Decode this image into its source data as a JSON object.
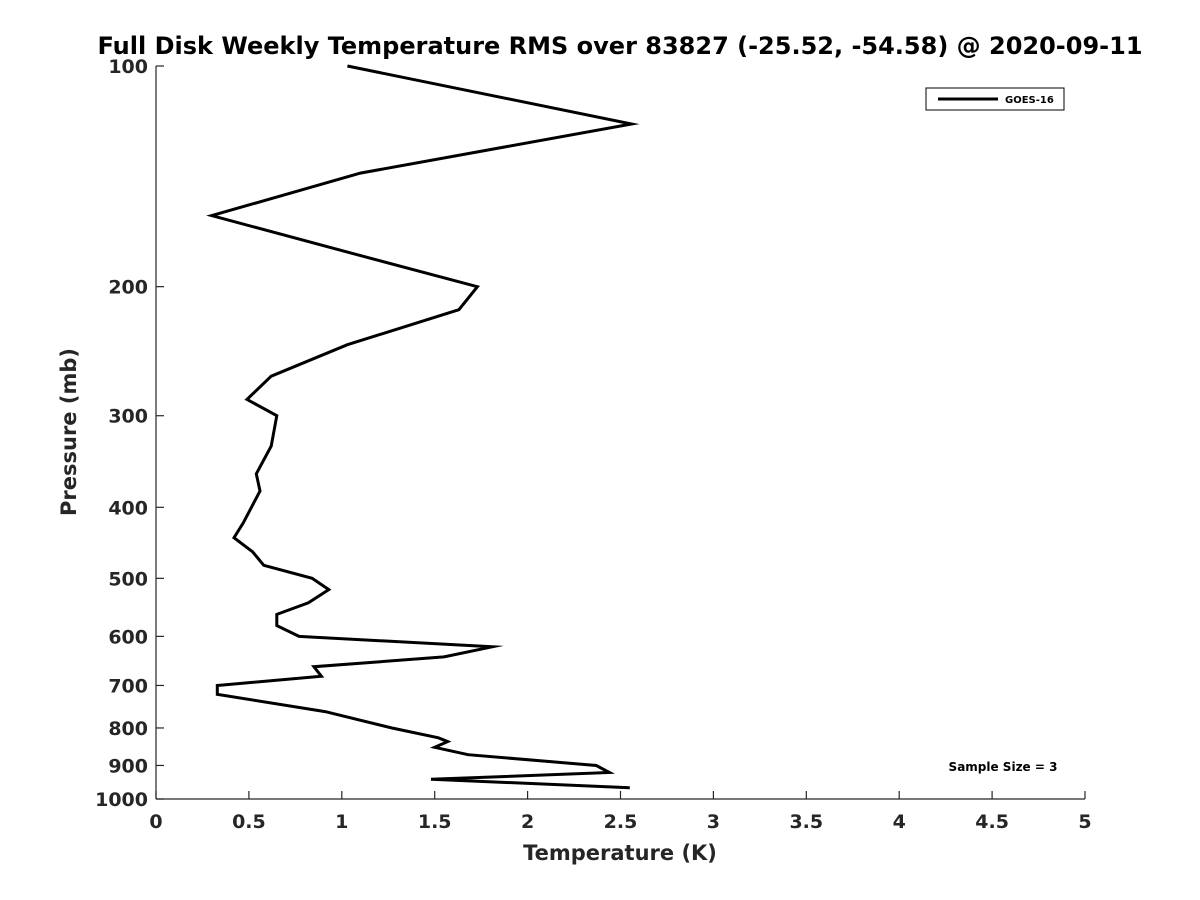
{
  "chart_data": {
    "type": "line",
    "title": "Full Disk Weekly Temperature RMS over 83827 (-25.52, -54.58) @ 2020-09-11",
    "xlabel": "Temperature (K)",
    "ylabel": "Pressure (mb)",
    "xlim": [
      0,
      5
    ],
    "ylim": [
      1000,
      100
    ],
    "yscale": "log",
    "y_reversed": true,
    "grid": false,
    "legend_position": "top-right",
    "x_ticks": [
      "0",
      "0.5",
      "1",
      "1.5",
      "2",
      "2.5",
      "3",
      "3.5",
      "4",
      "4.5",
      "5"
    ],
    "y_ticks": [
      "100",
      "200",
      "300",
      "400",
      "500",
      "600",
      "700",
      "800",
      "900",
      "1000"
    ],
    "series": [
      {
        "name": "GOES-16",
        "color": "#000000",
        "points": [
          [
            1.03,
            100
          ],
          [
            2.56,
            120
          ],
          [
            1.1,
            140
          ],
          [
            0.3,
            160
          ],
          [
            1.05,
            180
          ],
          [
            1.73,
            200
          ],
          [
            1.63,
            215
          ],
          [
            1.03,
            240
          ],
          [
            0.62,
            265
          ],
          [
            0.49,
            285
          ],
          [
            0.65,
            300
          ],
          [
            0.62,
            330
          ],
          [
            0.54,
            360
          ],
          [
            0.56,
            380
          ],
          [
            0.47,
            420
          ],
          [
            0.42,
            440
          ],
          [
            0.52,
            460
          ],
          [
            0.58,
            480
          ],
          [
            0.84,
            500
          ],
          [
            0.93,
            518
          ],
          [
            0.82,
            540
          ],
          [
            0.65,
            560
          ],
          [
            0.65,
            580
          ],
          [
            0.77,
            600
          ],
          [
            1.81,
            620
          ],
          [
            1.55,
            640
          ],
          [
            0.85,
            660
          ],
          [
            0.89,
            680
          ],
          [
            0.33,
            700
          ],
          [
            0.33,
            720
          ],
          [
            0.91,
            760
          ],
          [
            1.27,
            800
          ],
          [
            1.52,
            825
          ],
          [
            1.57,
            835
          ],
          [
            1.5,
            850
          ],
          [
            1.68,
            870
          ],
          [
            2.37,
            900
          ],
          [
            2.44,
            920
          ],
          [
            1.48,
            940
          ],
          [
            2.55,
            965
          ]
        ]
      }
    ],
    "annotations": [
      "Sample Size = 3"
    ]
  }
}
